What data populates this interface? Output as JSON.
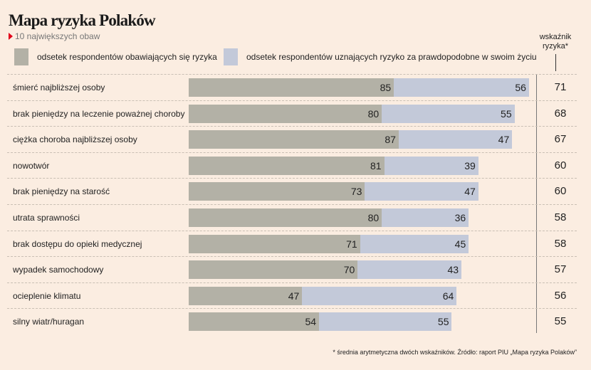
{
  "title": "Mapa ryzyka Polaków",
  "subtitle": "10 największych obaw",
  "index_header": "wskaźnik ryzyka*",
  "footnote": "* średnia arytmetyczna dwóch wskaźników. Źródło: raport PIU „Mapa ryzyka Polaków”",
  "colors": {
    "fear": "#b3b1a6",
    "likely": "#c3c9d9",
    "background": "#fbede1"
  },
  "chart_data": {
    "type": "bar",
    "stacked": true,
    "orientation": "horizontal",
    "title": "Mapa ryzyka Polaków",
    "legend": [
      "odsetek respondentów obawiających się ryzyka",
      "odsetek respondentów uznających ryzyko za prawdopodobne w swoim życiu"
    ],
    "categories": [
      "śmierć najbliższej osoby",
      "brak pieniędzy na leczenie poważnej choroby",
      "ciężka choroba najbliższej osoby",
      "nowotwór",
      "brak pieniędzy na starość",
      "utrata sprawności",
      "brak dostępu do opieki medycznej",
      "wypadek samochodowy",
      "ocieplenie klimatu",
      "silny wiatr/huragan"
    ],
    "series": [
      {
        "name": "odsetek respondentów obawiających się ryzyka",
        "values": [
          85,
          80,
          87,
          81,
          73,
          80,
          71,
          70,
          47,
          54
        ]
      },
      {
        "name": "odsetek respondentów uznających ryzyko za prawdopodobne w swoim życiu",
        "values": [
          56,
          55,
          47,
          39,
          47,
          36,
          45,
          43,
          64,
          55
        ]
      }
    ],
    "risk_index": [
      71,
      68,
      67,
      60,
      60,
      58,
      58,
      57,
      56,
      55
    ]
  }
}
